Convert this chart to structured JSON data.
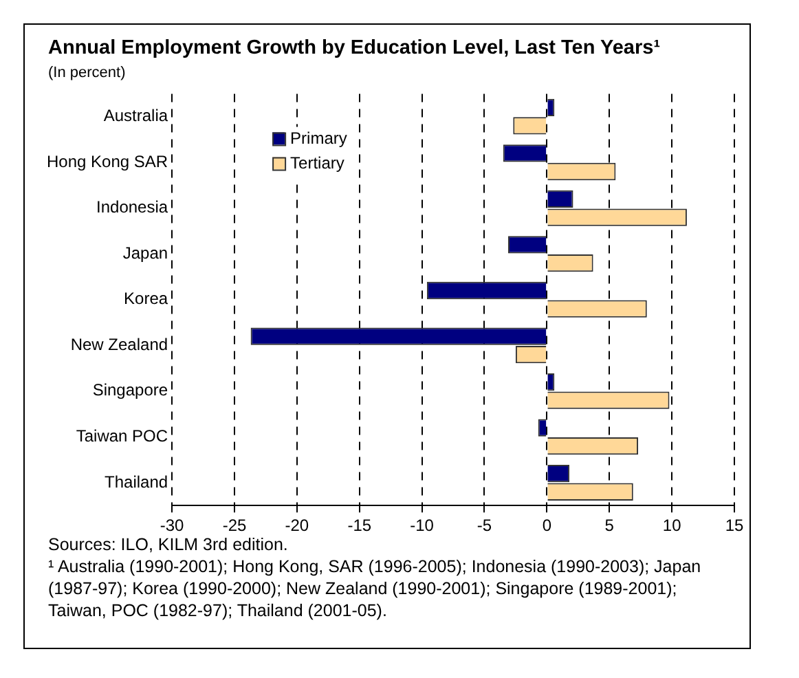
{
  "chart_data": {
    "type": "bar",
    "orientation": "horizontal",
    "title": "Annual Employment Growth by Education Level, Last Ten Years¹",
    "subtitle": "(In percent)",
    "categories": [
      "Australia",
      "Hong Kong SAR",
      "Indonesia",
      "Japan",
      "Korea",
      "New Zealand",
      "Singapore",
      "Taiwan POC",
      "Thailand"
    ],
    "series": [
      {
        "name": "Primary",
        "color": "#000080",
        "values": [
          0.6,
          -3.5,
          2.1,
          -3.1,
          -9.6,
          -23.7,
          0.6,
          -0.7,
          1.8
        ]
      },
      {
        "name": "Tertiary",
        "color": "#ffd898",
        "values": [
          -2.7,
          5.5,
          11.2,
          3.7,
          8.0,
          -2.5,
          9.8,
          7.3,
          6.9
        ]
      }
    ],
    "xlim": [
      -30,
      15
    ],
    "xticks": [
      -30,
      -25,
      -20,
      -15,
      -10,
      -5,
      0,
      5,
      10,
      15
    ],
    "grid": "x",
    "legend": "top left",
    "annotations": [
      "Sources: ILO, KILM 3rd edition.",
      "¹ Australia (1990-2001); Hong Kong, SAR (1996-2005); Indonesia (1990-2003); Japan (1987-97); Korea (1990-2000); New Zealand (1990-2001); Singapore (1989-2001); Taiwan, POC (1982-97); Thailand (2001-05)."
    ]
  }
}
